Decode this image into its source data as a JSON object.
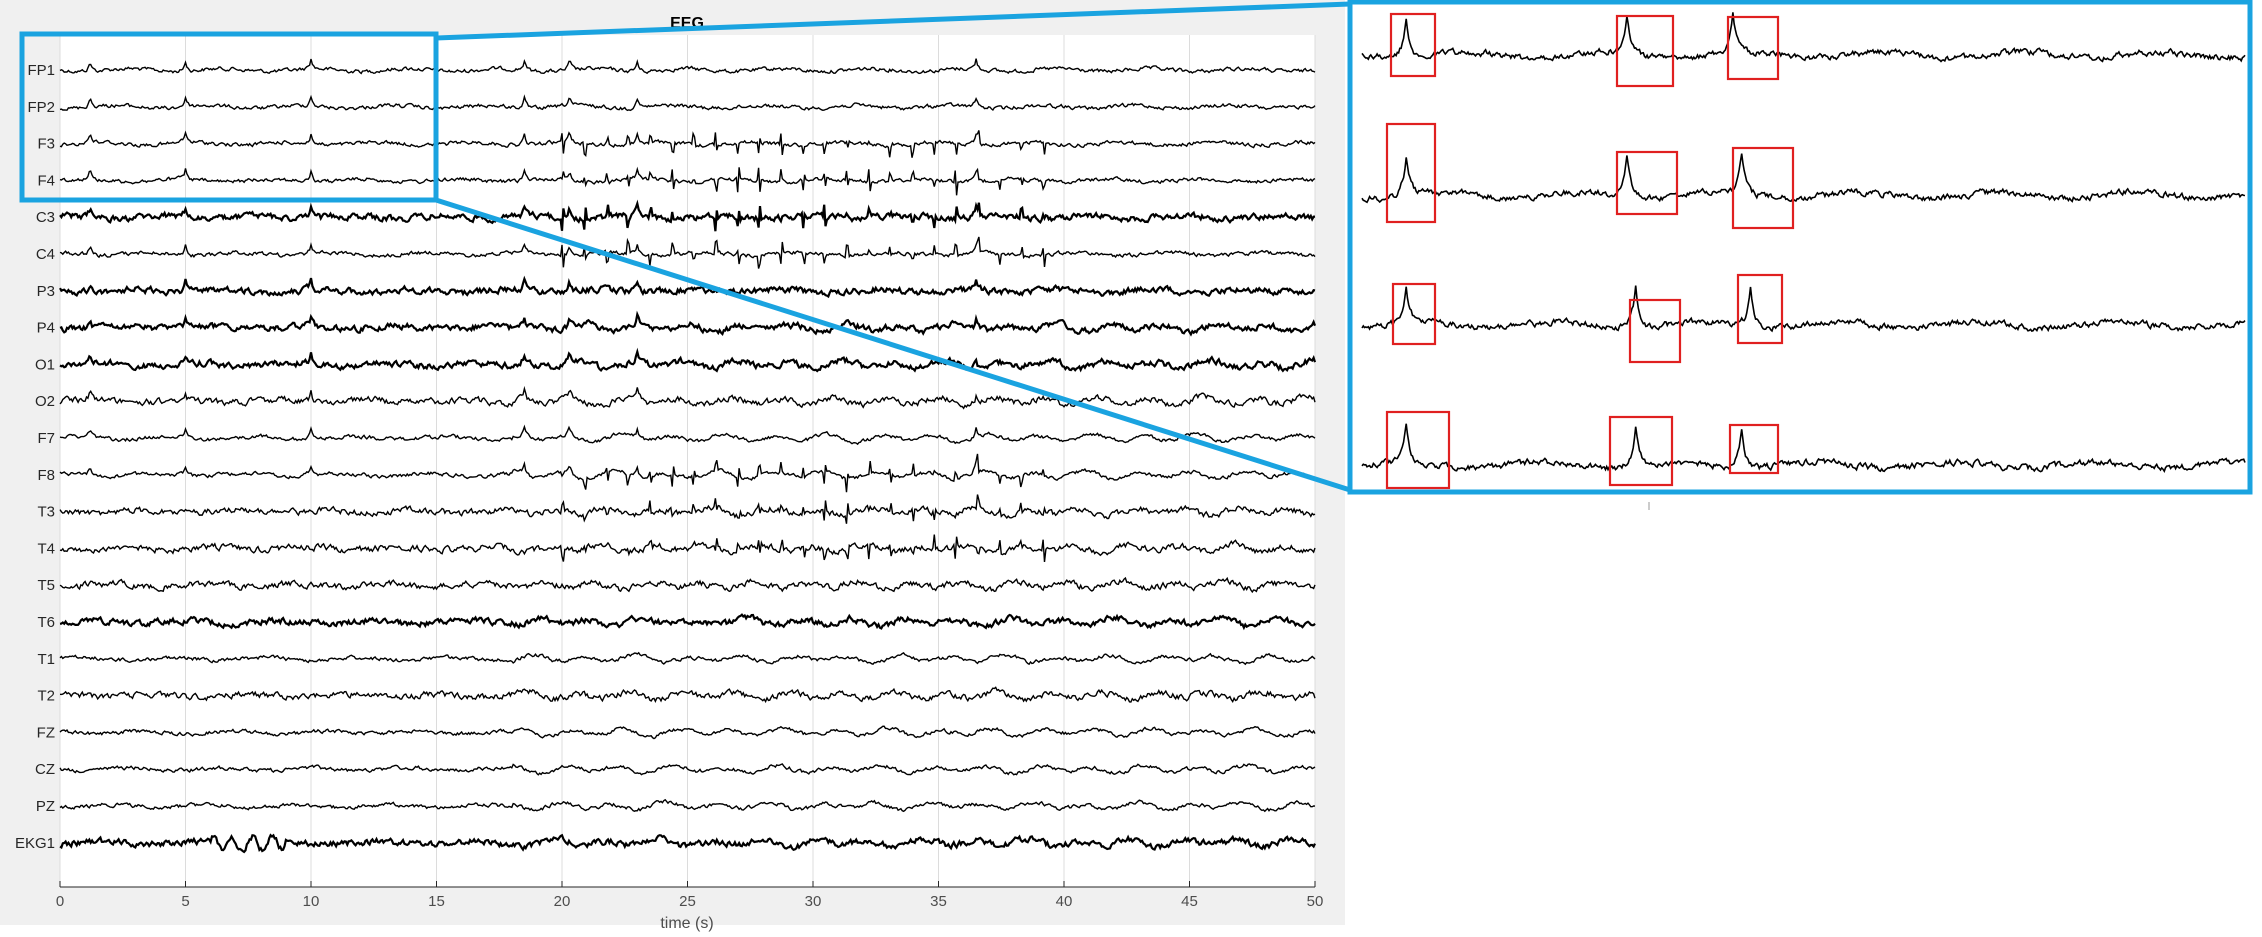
{
  "chart_data": [
    {
      "type": "line",
      "title": "EEG",
      "xlabel": "time (s)",
      "ylabel": "",
      "xlim": [
        0,
        50
      ],
      "xticks": [
        0,
        5,
        10,
        15,
        20,
        25,
        30,
        35,
        40,
        45,
        50
      ],
      "grid": true,
      "series": [
        {
          "name": "FP1"
        },
        {
          "name": "FP2"
        },
        {
          "name": "F3"
        },
        {
          "name": "F4"
        },
        {
          "name": "C3"
        },
        {
          "name": "C4"
        },
        {
          "name": "P3"
        },
        {
          "name": "P4"
        },
        {
          "name": "O1"
        },
        {
          "name": "O2"
        },
        {
          "name": "F7"
        },
        {
          "name": "F8"
        },
        {
          "name": "T3"
        },
        {
          "name": "T4"
        },
        {
          "name": "T5"
        },
        {
          "name": "T6"
        },
        {
          "name": "T1"
        },
        {
          "name": "T2"
        },
        {
          "name": "FZ"
        },
        {
          "name": "CZ"
        },
        {
          "name": "PZ"
        },
        {
          "name": "EKG1"
        }
      ],
      "spike_times": [
        1.2,
        5.0,
        10.0,
        18.5,
        20.3,
        23.0,
        36.5
      ],
      "seizure_interval": [
        19.5,
        50
      ]
    },
    {
      "type": "line",
      "title": "",
      "description_of_view": "zoom of FP1, FP2, F3, F4 over 0–15 s",
      "xlim": [
        0,
        15
      ],
      "series": [
        {
          "name": "FP1"
        },
        {
          "name": "FP2"
        },
        {
          "name": "F3"
        },
        {
          "name": "F4"
        }
      ],
      "highlighted_spikes_per_channel": 3
    }
  ],
  "colors": {
    "axes_background": "#f0f0f0",
    "trace": "#000000",
    "zoom_box": "#1aa3e0",
    "spike_box": "#e02020",
    "grid": "#dcdcdc"
  }
}
